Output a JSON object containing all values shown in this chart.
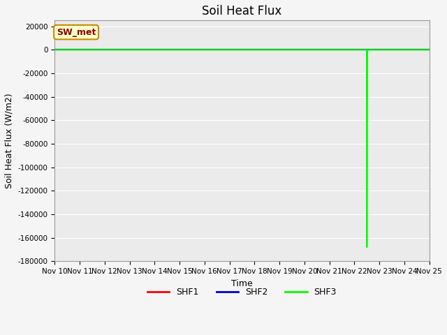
{
  "title": "Soil Heat Flux",
  "xlabel": "Time",
  "ylabel": "Soil Heat Flux (W/m2)",
  "ylim": [
    -180000,
    25000
  ],
  "yticks": [
    20000,
    0,
    -20000,
    -40000,
    -60000,
    -80000,
    -100000,
    -120000,
    -140000,
    -160000,
    -180000
  ],
  "background_color": "#ebebeb",
  "grid_color": "#ffffff",
  "fig_bg_color": "#f5f5f5",
  "annotation_text": "SW_met",
  "annotation_bg": "#ffffcc",
  "annotation_edge": "#cc8800",
  "annotation_text_color": "#8b0000",
  "series": [
    {
      "name": "SHF1",
      "color": "#ff0000",
      "x": [
        10,
        25
      ],
      "y": [
        0,
        0
      ]
    },
    {
      "name": "SHF2",
      "color": "#0000cc",
      "x": [
        10,
        25
      ],
      "y": [
        0,
        0
      ]
    },
    {
      "name": "SHF3",
      "color": "#00ff00",
      "x": [
        10,
        22.49,
        22.5,
        22.5,
        22.51,
        25
      ],
      "y": [
        0,
        0,
        0,
        -168000,
        0,
        0
      ]
    }
  ],
  "xtick_labels": [
    "Nov 10",
    "Nov 11",
    "Nov 12",
    "Nov 13",
    "Nov 14",
    "Nov 15",
    "Nov 16",
    "Nov 17",
    "Nov 18",
    "Nov 19",
    "Nov 20",
    "Nov 21",
    "Nov 22",
    "Nov 23",
    "Nov 24",
    "Nov 25"
  ],
  "xtick_positions": [
    10,
    11,
    12,
    13,
    14,
    15,
    16,
    17,
    18,
    19,
    20,
    21,
    22,
    23,
    24,
    25
  ],
  "xlim": [
    10,
    25
  ],
  "figsize": [
    6.4,
    4.8
  ],
  "dpi": 100,
  "title_fontsize": 12,
  "axis_label_fontsize": 9,
  "tick_fontsize": 7.5,
  "legend_fontsize": 9,
  "linewidth": 1.5
}
